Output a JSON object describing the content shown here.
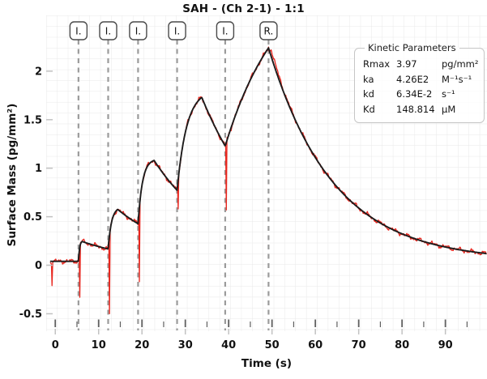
{
  "header": {
    "title": "SAH -  (Ch 2-1) - 1:1"
  },
  "kinetic_parameters": {
    "title": "Kinetic Parameters",
    "rows": [
      {
        "param": "Rmax",
        "value": "3.97",
        "unit": "pg/mm²"
      },
      {
        "param": "ka",
        "value": "4.26E2",
        "unit": "M⁻¹s⁻¹"
      },
      {
        "param": "kd",
        "value": "6.34E-2",
        "unit": "s⁻¹"
      },
      {
        "param": "Kd",
        "value": "148.814",
        "unit": "µM"
      }
    ]
  },
  "chart_data": {
    "type": "line",
    "title": "SAH -  (Ch 2-1) - 1:1",
    "xlabel": "Time (s)",
    "ylabel": "Surface Mass (pg/mm²)",
    "xlim": [
      -2.1,
      99.6
    ],
    "ylim": [
      -0.68,
      2.575
    ],
    "x_ticks": [
      0,
      10,
      20,
      30,
      40,
      50,
      60,
      70,
      80,
      90
    ],
    "x_minor_tick_step": 5,
    "y_ticks": [
      -0.5,
      0,
      0.5,
      1,
      1.5,
      2
    ],
    "grid": true,
    "legend_position": "none",
    "events": [
      {
        "label": "I.",
        "t": 5.35
      },
      {
        "label": "I.",
        "t": 12.2
      },
      {
        "label": "I.",
        "t": 19.1
      },
      {
        "label": "I.",
        "t": 28.1
      },
      {
        "label": "I.",
        "t": 39.2
      },
      {
        "label": "R.",
        "t": 49.2
      }
    ],
    "series": [
      {
        "name": "measured",
        "color": "#e8251d"
      },
      {
        "name": "fit",
        "color": "#1c1c1c"
      }
    ],
    "fit_model": {
      "baseline": 0.04,
      "t_start": -1.2,
      "t_end": 99.6,
      "kd": 0.0634,
      "injections": [
        {
          "t0": 5.35,
          "tp": 6.2,
          "peak": 0.245,
          "r": 4.0
        },
        {
          "t0": 12.2,
          "tp": 14.4,
          "peak": 0.575,
          "r": 1.3
        },
        {
          "t0": 19.1,
          "tp": 22.8,
          "peak": 1.08,
          "r": 1.0
        },
        {
          "t0": 28.1,
          "tp": 33.8,
          "peak": 1.73,
          "r": 0.45
        },
        {
          "t0": 39.2,
          "tp": 49.2,
          "peak": 2.24,
          "r": 0.08
        }
      ],
      "regeneration": {
        "t0": 49.2,
        "v0": 2.24,
        "rate": 0.067,
        "offset": 0.045
      }
    },
    "measured_spikes": [
      {
        "t": -0.85,
        "v": -0.21
      },
      {
        "t": 5.55,
        "v": -0.33
      },
      {
        "t": 12.4,
        "v": -0.5
      },
      {
        "t": 19.3,
        "v": -0.17
      },
      {
        "t": 28.25,
        "v": 0.58
      },
      {
        "t": 39.35,
        "v": 0.57
      }
    ]
  },
  "colors": {
    "grid": "#e9e9e9",
    "event_line": "#9b9b9b",
    "tick_dark": "#5f5f5f",
    "tick_light": "#c2c2c2",
    "text": "#111111",
    "box_border": "#c6c6c6",
    "event_box_border": "#4a4a4a"
  }
}
